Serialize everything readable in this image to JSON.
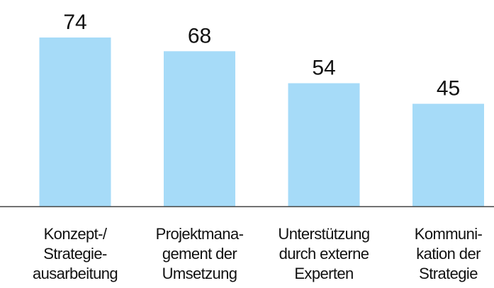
{
  "chart_data": {
    "type": "bar",
    "categories": [
      [
        "Konzept-/",
        "Strategie-",
        "ausarbeitung"
      ],
      [
        "Projektmana-",
        "gement der",
        "Umsetzung"
      ],
      [
        "Unterstützung",
        "durch externe",
        "Experten"
      ],
      [
        "Kommuni-",
        "kation der",
        "Strategie"
      ]
    ],
    "values": [
      74,
      68,
      54,
      45
    ],
    "color": "#a6dbf8"
  }
}
